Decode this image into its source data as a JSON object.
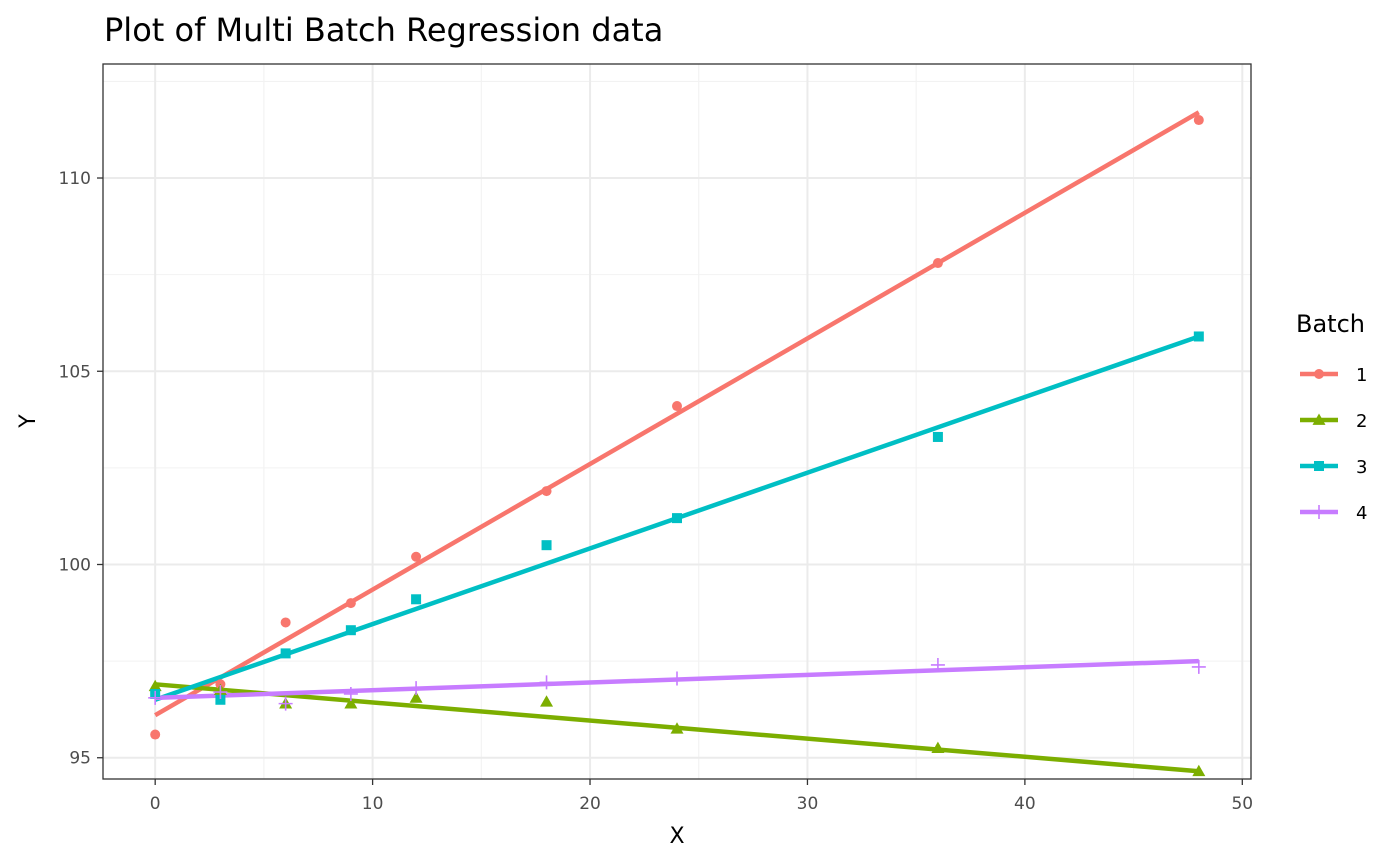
{
  "chart_data": {
    "type": "line",
    "title": "Plot of Multi Batch Regression data",
    "xlabel": "X",
    "ylabel": "Y",
    "xlim": [
      -2.4,
      50.4
    ],
    "ylim": [
      94.45,
      112.95
    ],
    "x_ticks": [
      0,
      10,
      20,
      30,
      40,
      50
    ],
    "y_ticks": [
      95,
      100,
      105,
      110
    ],
    "grid": true,
    "legend": {
      "title": "Batch",
      "position": "right"
    },
    "series": [
      {
        "name": "1",
        "color": "#F8766D",
        "marker": "circle",
        "points": [
          [
            0,
            95.6
          ],
          [
            3,
            96.9
          ],
          [
            6,
            98.5
          ],
          [
            9,
            99.0
          ],
          [
            12,
            100.2
          ],
          [
            18,
            101.9
          ],
          [
            24,
            104.1
          ],
          [
            36,
            107.8
          ],
          [
            48,
            111.5
          ]
        ],
        "fit": [
          [
            0,
            96.1
          ],
          [
            48,
            111.7
          ]
        ]
      },
      {
        "name": "2",
        "color": "#7CAE00",
        "marker": "triangle",
        "points": [
          [
            0,
            96.85
          ],
          [
            3,
            96.75
          ],
          [
            6,
            96.4
          ],
          [
            9,
            96.4
          ],
          [
            12,
            96.55
          ],
          [
            18,
            96.45
          ],
          [
            24,
            95.75
          ],
          [
            36,
            95.25
          ],
          [
            48,
            94.65
          ]
        ],
        "fit": [
          [
            0,
            96.9
          ],
          [
            48,
            94.65
          ]
        ]
      },
      {
        "name": "3",
        "color": "#00BFC4",
        "marker": "square",
        "points": [
          [
            0,
            96.65
          ],
          [
            3,
            96.5
          ],
          [
            6,
            97.7
          ],
          [
            9,
            98.3
          ],
          [
            12,
            99.1
          ],
          [
            18,
            100.5
          ],
          [
            24,
            101.2
          ],
          [
            36,
            103.3
          ],
          [
            48,
            105.9
          ]
        ],
        "fit": [
          [
            0,
            96.5
          ],
          [
            48,
            105.9
          ]
        ]
      },
      {
        "name": "4",
        "color": "#C77CFF",
        "marker": "plus",
        "points": [
          [
            0,
            96.55
          ],
          [
            3,
            96.7
          ],
          [
            6,
            96.4
          ],
          [
            9,
            96.65
          ],
          [
            12,
            96.8
          ],
          [
            18,
            96.95
          ],
          [
            24,
            97.05
          ],
          [
            36,
            97.4
          ],
          [
            48,
            97.35
          ]
        ],
        "fit": [
          [
            0,
            96.55
          ],
          [
            48,
            97.5
          ]
        ]
      }
    ]
  }
}
